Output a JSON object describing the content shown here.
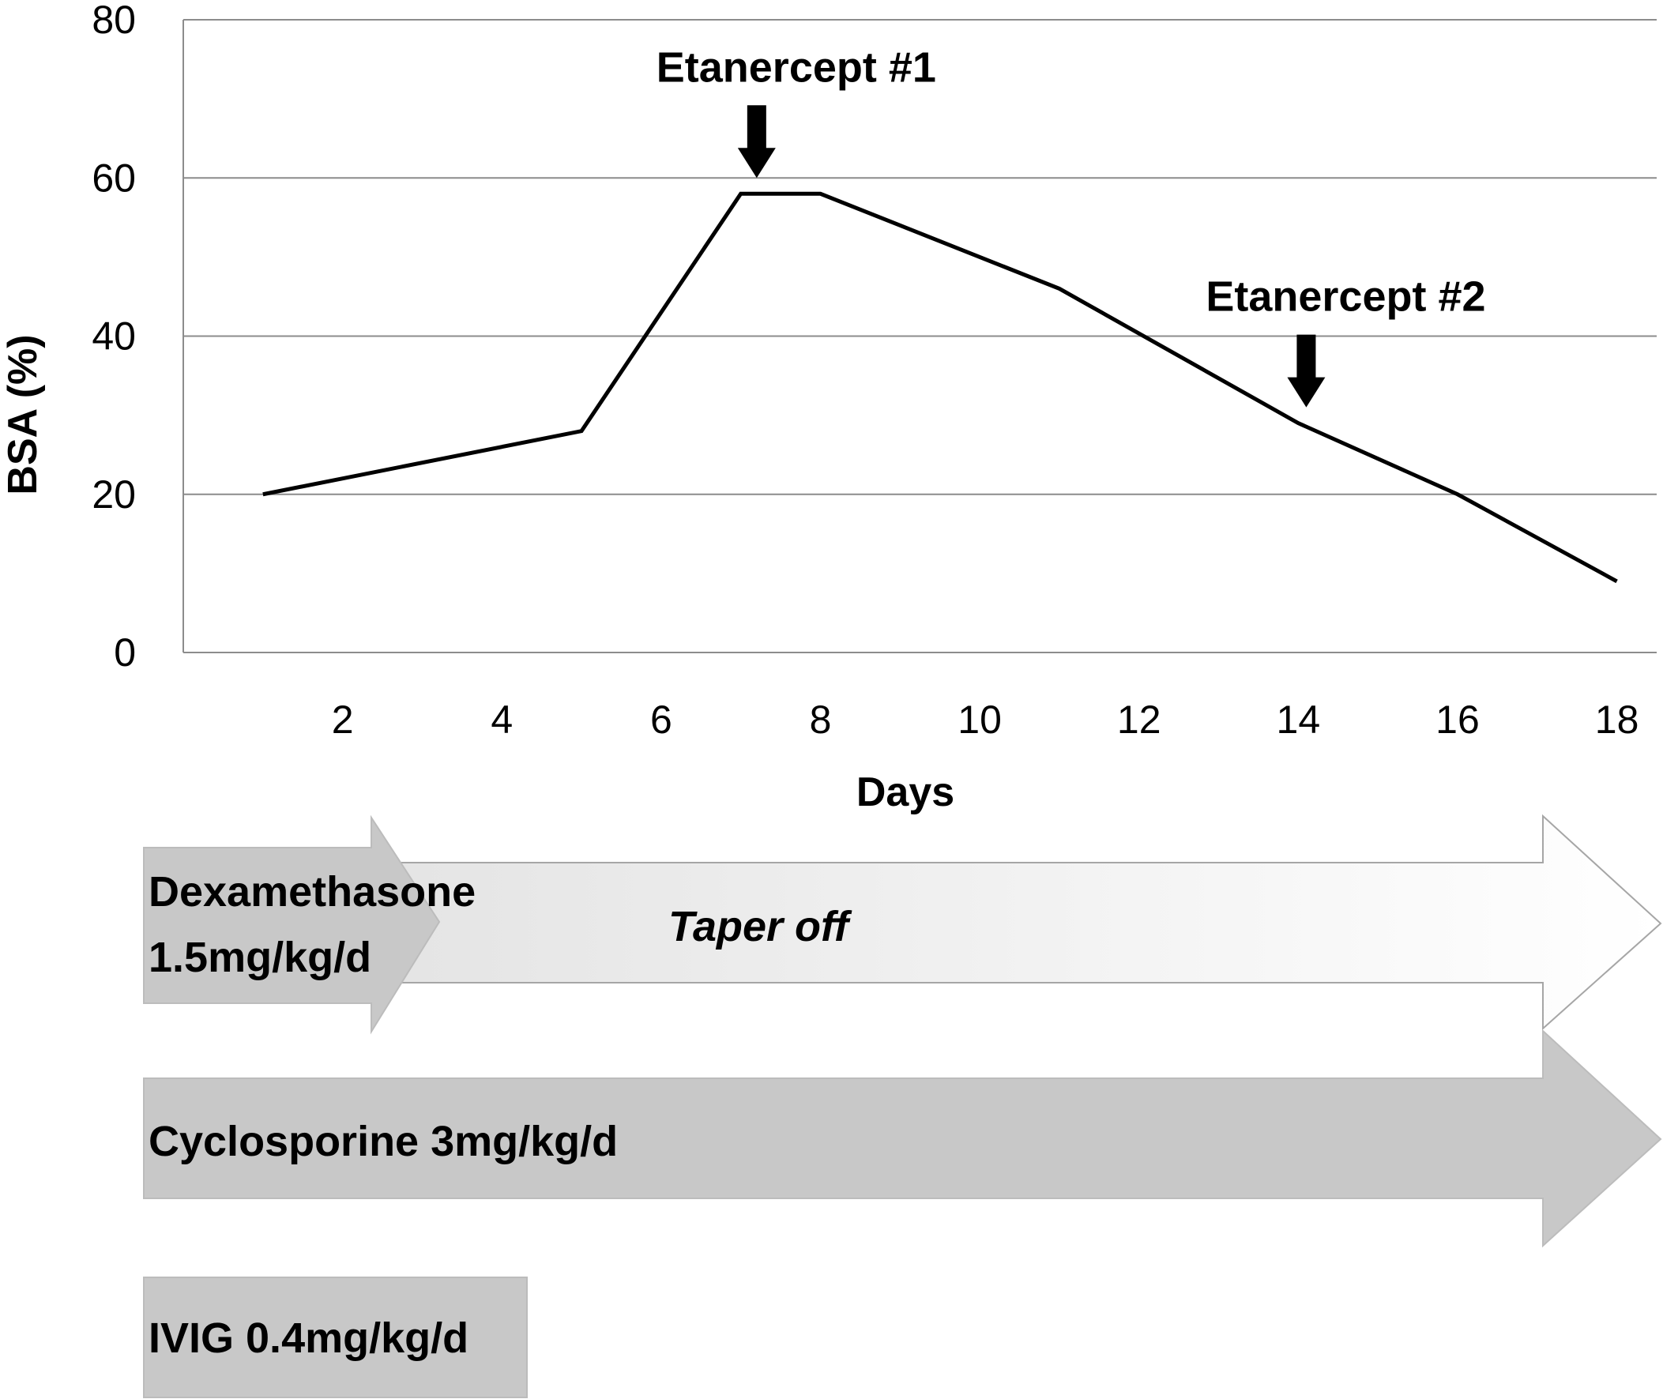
{
  "chart_data": {
    "type": "line",
    "xlabel": "Days",
    "ylabel": "BSA (%)",
    "ylim": [
      0,
      80
    ],
    "xlim": [
      0,
      18.5
    ],
    "yticks": [
      0,
      20,
      40,
      60,
      80
    ],
    "xticks": [
      2,
      4,
      6,
      8,
      10,
      12,
      14,
      16,
      18
    ],
    "grid": "horizontal",
    "series": [
      {
        "x": [
          1,
          5,
          7,
          8,
          11,
          14,
          16,
          18
        ],
        "values": [
          20,
          28,
          58,
          58,
          46,
          29,
          20,
          9
        ]
      }
    ],
    "annotations": [
      {
        "text": "Etanercept #1",
        "x": 7.2,
        "y": 60
      },
      {
        "text": "Etanercept #2",
        "x": 14.1,
        "y": 31
      }
    ],
    "colors": {
      "line": "#000000",
      "grid": "#8c8c8c",
      "treatment_dark": "#c8c8c8",
      "treatment_light": "#ebebeb"
    }
  },
  "treatments": [
    {
      "label_lines": [
        "Dexamethasone",
        "1.5mg/kg/d"
      ],
      "start_day": 0.5,
      "end_day": 3.3
    },
    {
      "label": "Taper off",
      "start_day": 3.3,
      "end_day": 18.5
    },
    {
      "label": "Cyclosporine 3mg/kg/d",
      "start_day": 0.5,
      "end_day": 18.5
    },
    {
      "label": "IVIG 0.4mg/kg/d",
      "start_day": 0.5,
      "end_day": 5.1
    }
  ]
}
